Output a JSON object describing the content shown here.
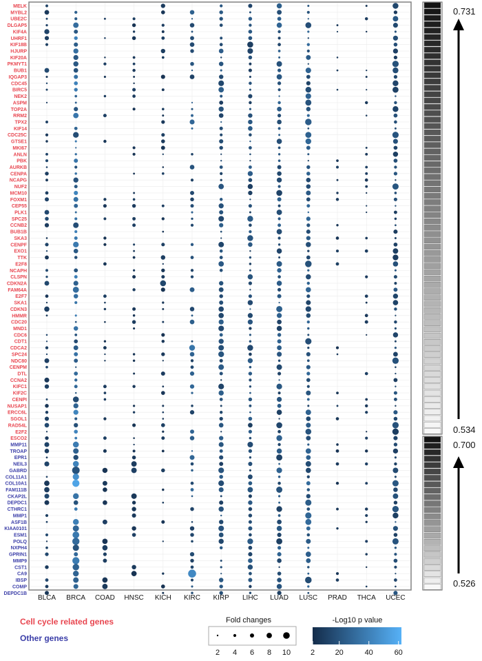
{
  "chart_data": [
    {
      "type": "dot-matrix",
      "cancers": [
        "BLCA",
        "BRCA",
        "COAD",
        "HNSC",
        "KICH",
        "KIRC",
        "KIRP",
        "LIHC",
        "LUAD",
        "LUSC",
        "PRAD",
        "THCA",
        "UCEC"
      ],
      "cell_cycle_genes": [
        "MELK",
        "MYBL2",
        "UBE2C",
        "DLGAP5",
        "KIF4A",
        "UHRF1",
        "KIF18B",
        "HJURP",
        "KIF20A",
        "PKMYT1",
        "BUB1",
        "IQGAP3",
        "CDC45",
        "BIRC5",
        "NEK2",
        "ASPM",
        "TOP2A",
        "RRM2",
        "TPX2",
        "KIF14",
        "CDC25C",
        "GTSE1",
        "MKI67",
        "ANLN",
        "PBK",
        "AURKB",
        "CENPA",
        "NCAPG",
        "NUF2",
        "MCM10",
        "FOXM1",
        "CEP55",
        "PLK1",
        "SPC25",
        "CCNB2",
        "BUB1B",
        "SKA3",
        "CENPF",
        "EXO1",
        "TTK",
        "E2F8",
        "NCAPH",
        "CLSPN",
        "CDKN2A",
        "FAM64A",
        "E2F7",
        "SKA1",
        "CDKN3",
        "HMMR",
        "CDC20",
        "MND1",
        "CDC6",
        "CDT1",
        "CDCA2",
        "SPC24",
        "NDC80",
        "CENPM",
        "DTL",
        "CCNA2",
        "KIFC1",
        "KIF2C",
        "CENPI",
        "NUSAP1",
        "ERCC6L",
        "SGOL1",
        "RAD54L",
        "E2F2",
        "ESCO2"
      ],
      "other_genes": [
        "MMP11",
        "TROAP",
        "EPR1",
        "NEIL3",
        "GABRD",
        "COL11A1",
        "COL10A1",
        "FAM111B",
        "CKAP2L",
        "DEPDC1",
        "CTHRC1",
        "MMP1",
        "ASF1B",
        "KIAA0101",
        "ESM1",
        "POLQ",
        "NXPH4",
        "GPRIN1",
        "MMP9",
        "CST1",
        "CA9",
        "IBSP",
        "COMP",
        "DEPDC1B"
      ],
      "size_legend": {
        "title": "Fold changes",
        "values": [
          2,
          4,
          6,
          8,
          10
        ]
      },
      "color_legend": {
        "title": "-Log10 p value",
        "ticks": [
          2,
          20,
          40,
          60
        ],
        "range": [
          2,
          62
        ],
        "low_color": "#142c4a",
        "high_color": "#56b1f7"
      },
      "group_legend": [
        {
          "label": "Cell cycle related genes",
          "color": "#e8454f"
        },
        {
          "label": "Other genes",
          "color": "#3b3ea8"
        }
      ]
    },
    {
      "type": "heatmap",
      "blocks": [
        {
          "name": "cell cycle related genes",
          "top_label": "0.731",
          "bottom_label": "0.534",
          "max": 0.731,
          "min": 0.534
        },
        {
          "name": "other genes",
          "top_label": "0.700",
          "bottom_label": "0.526",
          "max": 0.7,
          "min": 0.526
        }
      ]
    }
  ]
}
